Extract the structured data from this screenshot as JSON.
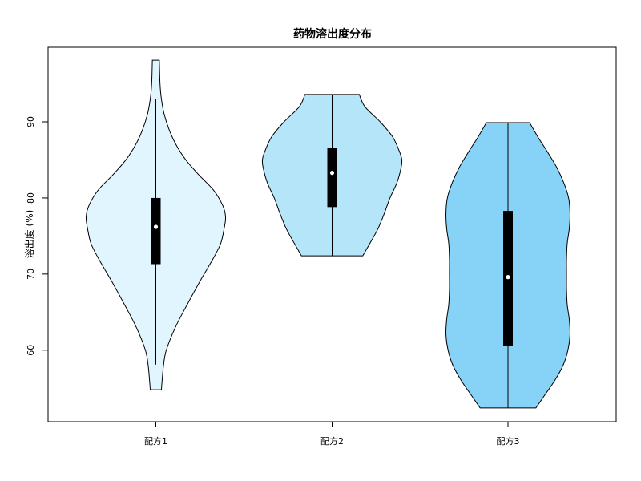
{
  "chart_data": {
    "type": "violin",
    "title": "药物溶出度分布",
    "xlabel": "",
    "ylabel": "溶出度 (%)",
    "ylim": [
      50.6,
      99.8
    ],
    "yticks": [
      60,
      70,
      80,
      90
    ],
    "grid": false,
    "categories": [
      "配方1",
      "配方2",
      "配方3"
    ],
    "series": [
      {
        "category": "配方1",
        "color": "#e0f5fd",
        "min": 54.8,
        "max": 98.1,
        "whisker_low": 58.1,
        "whisker_high": 93.0,
        "q1": 71.3,
        "median": 76.2,
        "q3": 80.0,
        "density": [
          [
            54.8,
            0.08
          ],
          [
            56,
            0.09
          ],
          [
            58,
            0.11
          ],
          [
            60,
            0.15
          ],
          [
            63,
            0.28
          ],
          [
            66,
            0.45
          ],
          [
            69,
            0.63
          ],
          [
            72,
            0.82
          ],
          [
            74,
            0.93
          ],
          [
            76,
            0.98
          ],
          [
            77.5,
            1.0
          ],
          [
            79,
            0.96
          ],
          [
            81,
            0.83
          ],
          [
            83,
            0.62
          ],
          [
            85,
            0.43
          ],
          [
            87,
            0.29
          ],
          [
            89,
            0.19
          ],
          [
            91,
            0.12
          ],
          [
            93,
            0.08
          ],
          [
            95,
            0.06
          ],
          [
            98.1,
            0.05
          ]
        ]
      },
      {
        "category": "配方2",
        "color": "#b5e5f9",
        "min": 72.4,
        "max": 93.6,
        "whisker_low": 72.4,
        "whisker_high": 93.6,
        "q1": 78.8,
        "median": 83.3,
        "q3": 86.6,
        "density": [
          [
            72.4,
            0.44
          ],
          [
            74,
            0.54
          ],
          [
            76,
            0.66
          ],
          [
            78,
            0.75
          ],
          [
            80,
            0.83
          ],
          [
            82,
            0.93
          ],
          [
            84,
            0.99
          ],
          [
            85,
            1.0
          ],
          [
            86,
            0.97
          ],
          [
            88,
            0.87
          ],
          [
            90,
            0.69
          ],
          [
            92,
            0.47
          ],
          [
            93.6,
            0.39
          ]
        ]
      },
      {
        "category": "配方3",
        "color": "#87d3f8",
        "min": 52.4,
        "max": 89.9,
        "whisker_low": 52.4,
        "whisker_high": 89.9,
        "q1": 60.6,
        "median": 69.6,
        "q3": 78.3,
        "density": [
          [
            52.4,
            0.4
          ],
          [
            54,
            0.52
          ],
          [
            56,
            0.67
          ],
          [
            58,
            0.79
          ],
          [
            60,
            0.86
          ],
          [
            62,
            0.89
          ],
          [
            64,
            0.88
          ],
          [
            66,
            0.85
          ],
          [
            68,
            0.84
          ],
          [
            70,
            0.84
          ],
          [
            72,
            0.84
          ],
          [
            74,
            0.85
          ],
          [
            76,
            0.88
          ],
          [
            78,
            0.89
          ],
          [
            80,
            0.87
          ],
          [
            82,
            0.8
          ],
          [
            84,
            0.7
          ],
          [
            86,
            0.57
          ],
          [
            88,
            0.43
          ],
          [
            89.9,
            0.31
          ]
        ]
      }
    ]
  }
}
